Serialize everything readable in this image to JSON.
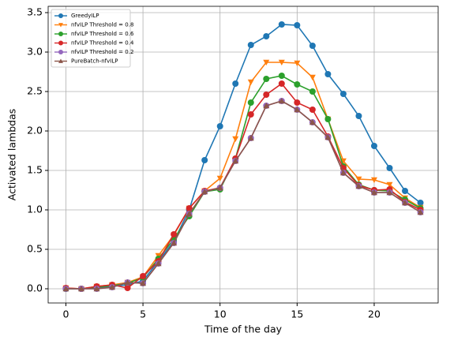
{
  "chart_data": {
    "type": "line",
    "xlabel": "Time of the day",
    "ylabel": "Activated lambdas",
    "x": [
      0,
      1,
      2,
      3,
      4,
      5,
      6,
      7,
      8,
      9,
      10,
      11,
      12,
      13,
      14,
      15,
      16,
      17,
      18,
      19,
      20,
      21,
      22,
      23
    ],
    "series": [
      {
        "name": "GreedyILP",
        "color": "#1f77b4",
        "marker": "circle",
        "values": [
          0,
          0,
          0.01,
          0.03,
          0.05,
          0.1,
          0.35,
          0.6,
          1.0,
          1.63,
          2.06,
          2.6,
          3.09,
          3.2,
          3.35,
          3.34,
          3.08,
          2.72,
          2.47,
          2.19,
          1.81,
          1.53,
          1.24,
          1.09
        ]
      },
      {
        "name": "nfvILP Threshold = 0.8",
        "color": "#ff7f0e",
        "marker": "triangle-down",
        "values": [
          0.01,
          0,
          0.03,
          0.05,
          0.08,
          0.15,
          0.42,
          0.68,
          1.02,
          1.24,
          1.4,
          1.9,
          2.62,
          2.87,
          2.87,
          2.86,
          2.68,
          2.15,
          1.62,
          1.39,
          1.38,
          1.32,
          1.15,
          1.03
        ]
      },
      {
        "name": "nfvILP Threshold = 0.6",
        "color": "#2ca02c",
        "marker": "circle",
        "values": [
          0,
          0,
          0.02,
          0.04,
          0.07,
          0.14,
          0.38,
          0.63,
          0.92,
          1.23,
          1.26,
          1.65,
          2.36,
          2.66,
          2.7,
          2.59,
          2.5,
          2.15,
          1.55,
          1.32,
          1.25,
          1.24,
          1.13,
          1.02
        ]
      },
      {
        "name": "nfvILP Threshold = 0.4",
        "color": "#d62728",
        "marker": "circle",
        "values": [
          0.01,
          0,
          0.03,
          0.05,
          0.01,
          0.16,
          0.35,
          0.69,
          1.02,
          1.24,
          1.28,
          1.65,
          2.21,
          2.46,
          2.6,
          2.36,
          2.27,
          1.93,
          1.53,
          1.31,
          1.25,
          1.26,
          1.1,
          1.0
        ]
      },
      {
        "name": "nfvILP Threshold = 0.2",
        "color": "#9467bd",
        "marker": "circle",
        "values": [
          0,
          0,
          0,
          0.02,
          0.08,
          0.07,
          0.32,
          0.58,
          0.95,
          1.23,
          1.28,
          1.62,
          1.91,
          2.32,
          2.38,
          2.27,
          2.11,
          1.92,
          1.47,
          1.3,
          1.22,
          1.22,
          1.09,
          0.97
        ]
      },
      {
        "name": "PureBatch-nfvILP",
        "color": "#8c564b",
        "marker": "triangle-up",
        "values": [
          0,
          0,
          0,
          0.02,
          0.08,
          0.07,
          0.32,
          0.58,
          0.95,
          1.23,
          1.28,
          1.62,
          1.91,
          2.32,
          2.38,
          2.27,
          2.11,
          1.92,
          1.47,
          1.3,
          1.22,
          1.22,
          1.09,
          0.97
        ]
      }
    ],
    "xlim": [
      -1.15,
      24.15
    ],
    "xticks": [
      0,
      5,
      10,
      15,
      20
    ],
    "ylim": [
      -0.18,
      3.58
    ],
    "yticks": [
      {
        "value": 0,
        "label": "0.0"
      },
      0.5,
      {
        "value": 1,
        "label": "1.0"
      },
      1.5,
      {
        "value": 2,
        "label": "2.0"
      },
      2.5,
      {
        "value": 3,
        "label": "3.0"
      },
      3.5
    ],
    "grid": true,
    "legend": "upper left"
  }
}
